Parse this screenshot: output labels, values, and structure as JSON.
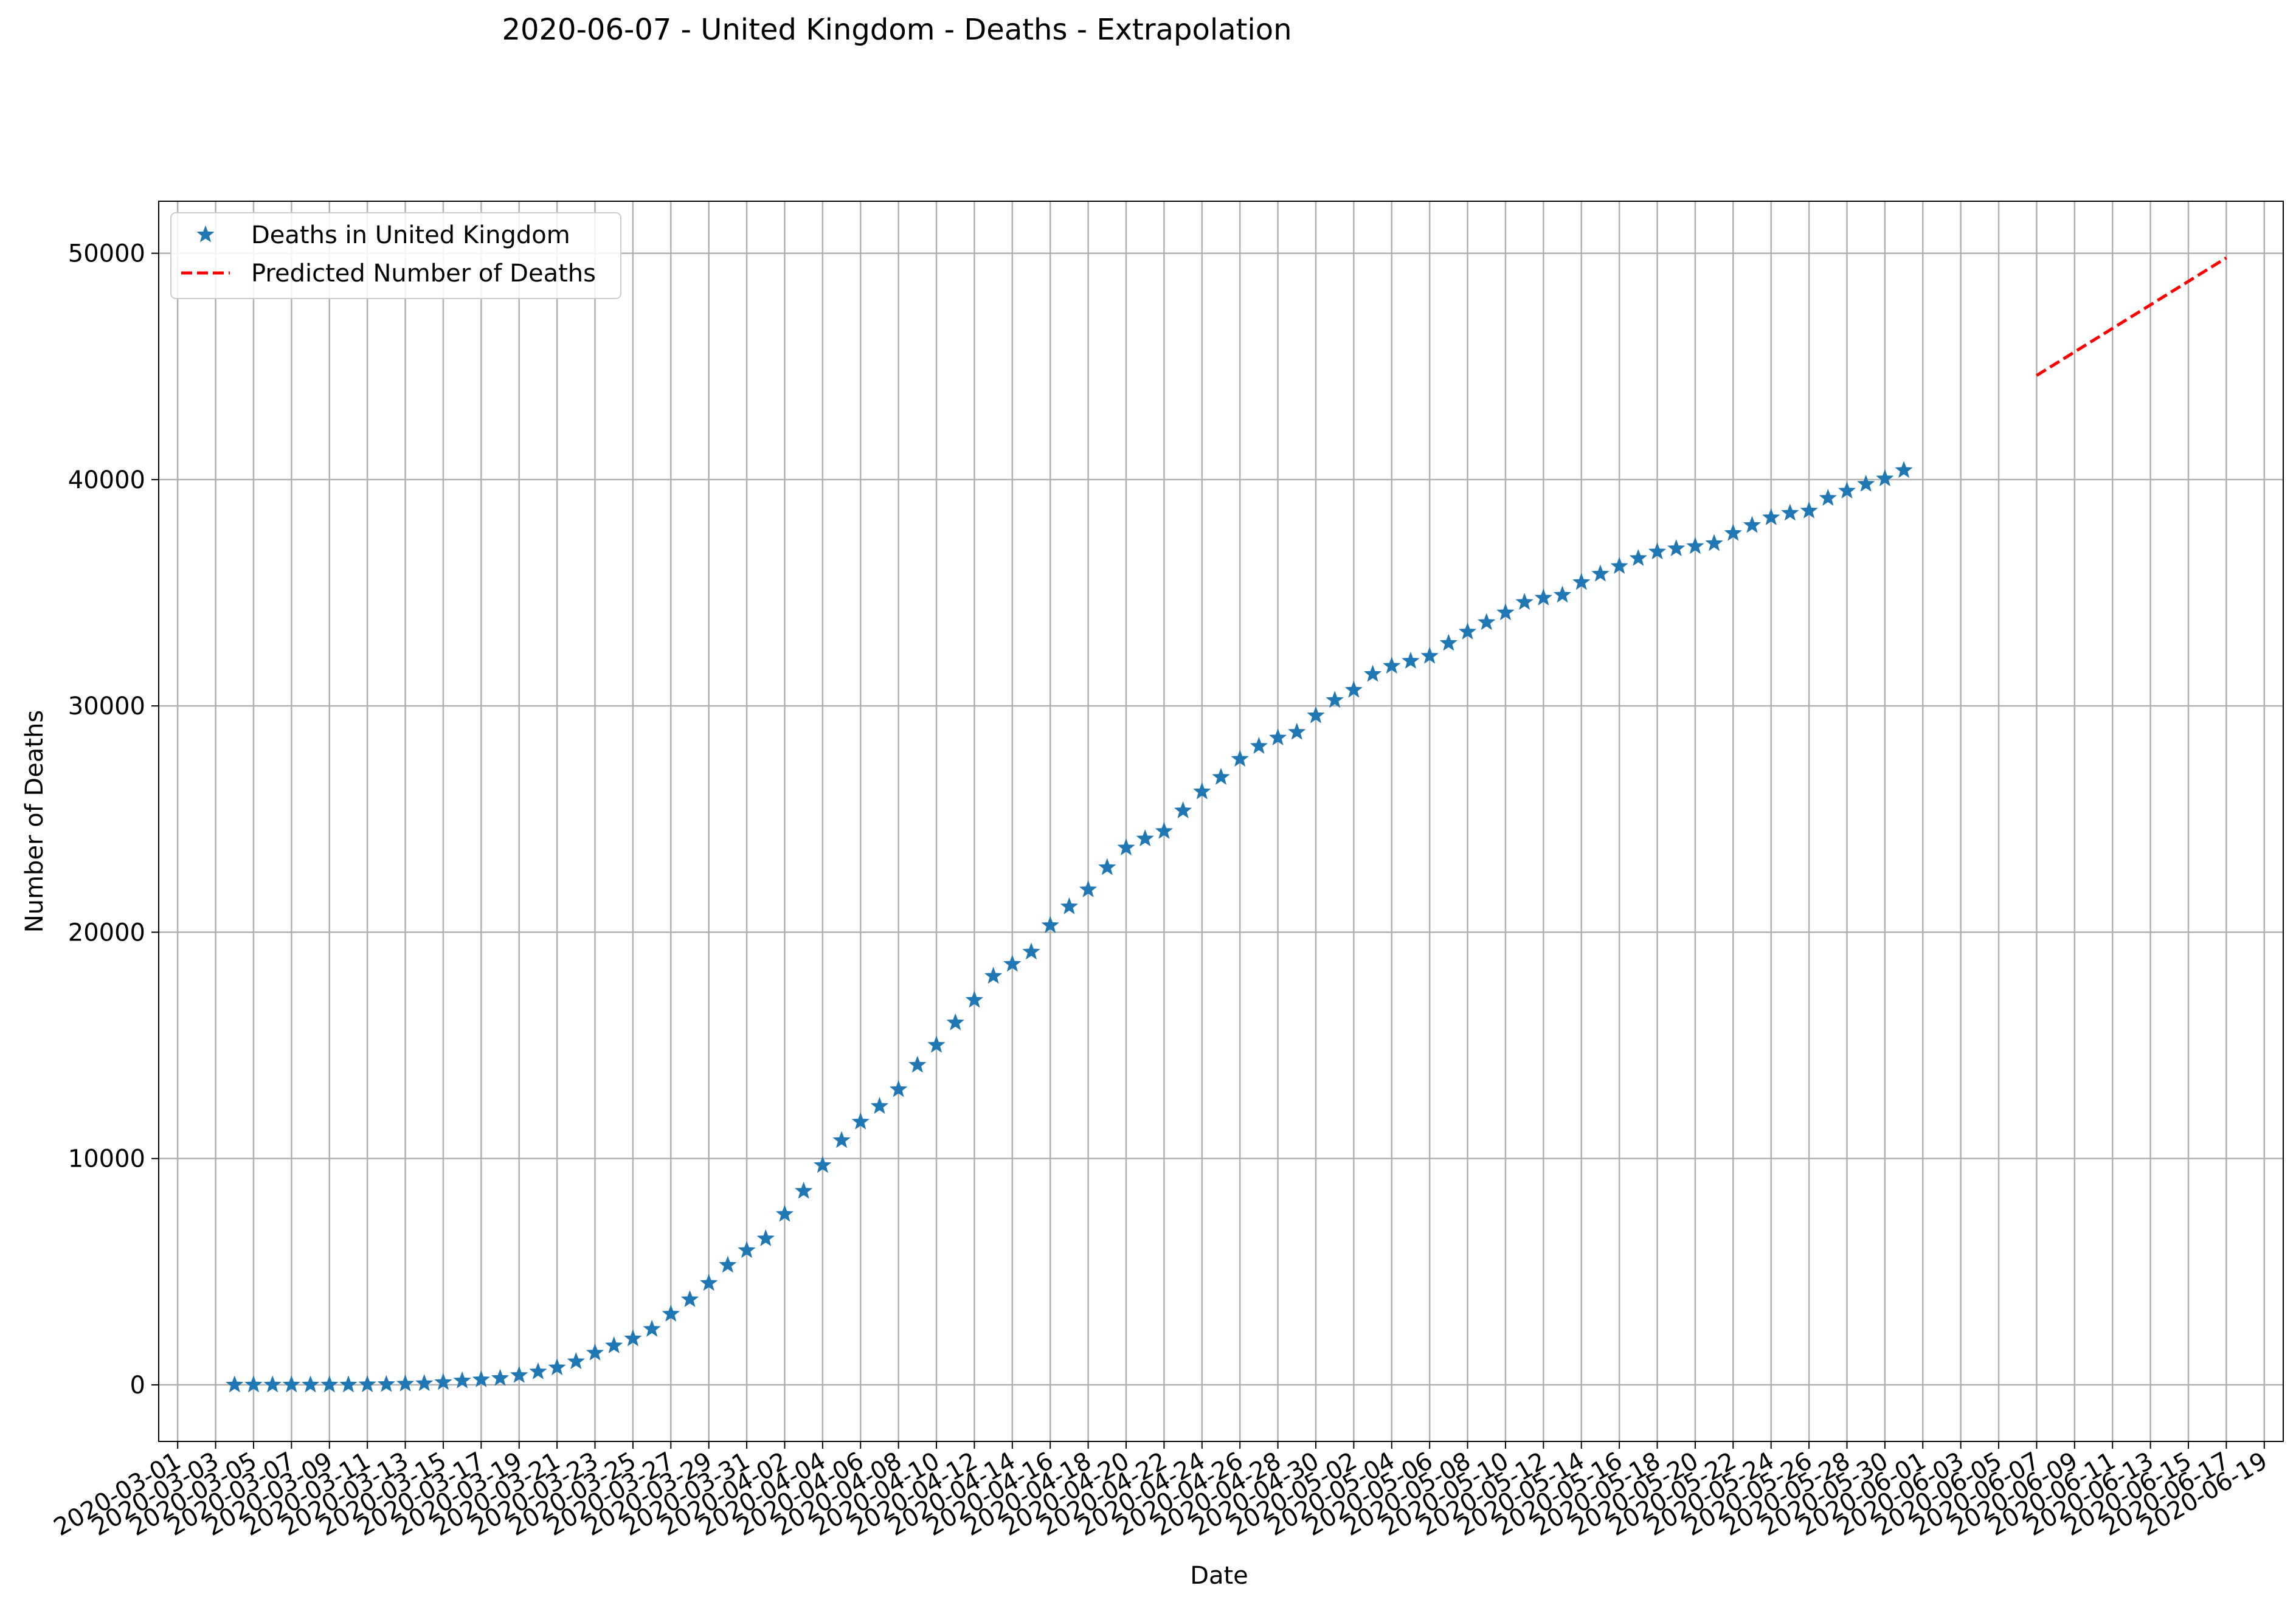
{
  "chart_data": {
    "type": "scatter",
    "title": "2020-06-07 - United Kingdom - Deaths - Extrapolation",
    "xlabel": "Date",
    "ylabel": "Number of Deaths",
    "x_start": "2020-03-01",
    "x_end": "2020-06-20",
    "xlim": [
      "2020-02-29",
      "2020-06-20"
    ],
    "ylim": [
      -2500,
      52300
    ],
    "yticks": [
      0,
      10000,
      20000,
      30000,
      40000,
      50000
    ],
    "xticks": [
      "2020-03-01",
      "2020-03-03",
      "2020-03-05",
      "2020-03-07",
      "2020-03-09",
      "2020-03-11",
      "2020-03-13",
      "2020-03-15",
      "2020-03-17",
      "2020-03-19",
      "2020-03-21",
      "2020-03-23",
      "2020-03-25",
      "2020-03-27",
      "2020-03-29",
      "2020-03-31",
      "2020-04-02",
      "2020-04-04",
      "2020-04-06",
      "2020-04-08",
      "2020-04-10",
      "2020-04-12",
      "2020-04-14",
      "2020-04-16",
      "2020-04-18",
      "2020-04-20",
      "2020-04-22",
      "2020-04-24",
      "2020-04-26",
      "2020-04-28",
      "2020-04-30",
      "2020-05-02",
      "2020-05-04",
      "2020-05-06",
      "2020-05-08",
      "2020-05-10",
      "2020-05-12",
      "2020-05-14",
      "2020-05-16",
      "2020-05-18",
      "2020-05-20",
      "2020-05-22",
      "2020-05-24",
      "2020-05-26",
      "2020-05-28",
      "2020-05-30",
      "2020-06-01",
      "2020-06-03",
      "2020-06-05",
      "2020-06-07",
      "2020-06-09",
      "2020-06-11",
      "2020-06-13",
      "2020-06-15",
      "2020-06-17",
      "2020-06-19"
    ],
    "grid": true,
    "legend_position": "top-left",
    "series": [
      {
        "name": "Deaths in United Kingdom",
        "marker": "star",
        "color": "#1f77b4",
        "x_first": "2020-03-04",
        "values": [
          0,
          0,
          0,
          0,
          0,
          0,
          0,
          10,
          20,
          40,
          60,
          110,
          180,
          230,
          290,
          420,
          580,
          760,
          1030,
          1410,
          1730,
          2040,
          2460,
          3130,
          3770,
          4490,
          5290,
          5940,
          6460,
          7540,
          8560,
          9700,
          10800,
          11620,
          12310,
          13050,
          14130,
          15010,
          16000,
          17000,
          18060,
          18590,
          19130,
          20300,
          21130,
          21880,
          22860,
          23730,
          24130,
          24460,
          25370,
          26210,
          26850,
          27650,
          28220,
          28590,
          28840,
          29570,
          30250,
          30700,
          31400,
          31760,
          31980,
          32200,
          32770,
          33270,
          33690,
          34120,
          34580,
          34770,
          34900,
          35460,
          35830,
          36170,
          36520,
          36810,
          36950,
          37050,
          37180,
          37630,
          37980,
          38320,
          38520,
          38620,
          39180,
          39500,
          39800,
          40040,
          40410
        ]
      },
      {
        "name": "Predicted Number of Deaths",
        "style": "dashed",
        "color": "#ff0000",
        "x": [
          "2020-06-07",
          "2020-06-17"
        ],
        "values": [
          44600,
          49800
        ]
      }
    ]
  }
}
